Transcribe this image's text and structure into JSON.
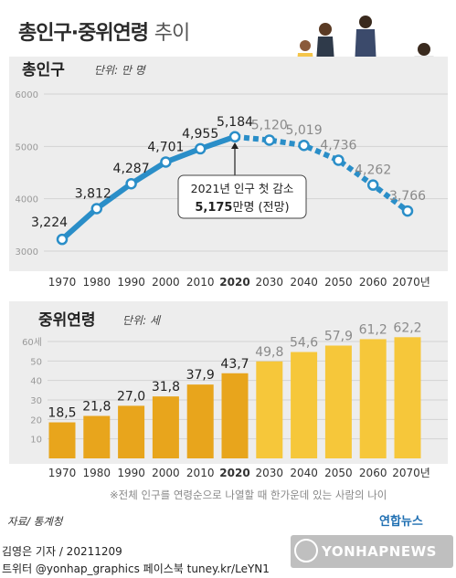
{
  "page": {
    "title_main": "총인구·중위연령",
    "title_suffix": "추이"
  },
  "colors": {
    "background": "#ffffff",
    "panel_bg": "#ededed",
    "line_blue": "#2a8ec8",
    "bar_dark": "#e8a51c",
    "bar_light": "#f6c73a"
  },
  "chart_data": [
    {
      "type": "line",
      "title": "총인구",
      "unit_label": "단위: 만 명",
      "x": [
        "1970",
        "1980",
        "1990",
        "2000",
        "2010",
        "2020",
        "2030",
        "2040",
        "2050",
        "2060",
        "2070년"
      ],
      "series": [
        {
          "values": [
            3224,
            3812,
            4287,
            4701,
            4955,
            5184,
            5120,
            5019,
            4736,
            4262,
            3766
          ]
        }
      ],
      "value_labels": [
        "3,224",
        "3,812",
        "4,287",
        "4,701",
        "4,955",
        "5,184",
        "5,120",
        "5,019",
        "4,736",
        "4,262",
        "3,766"
      ],
      "projection_from_index": 5,
      "ylim": [
        2800,
        6200
      ],
      "yticks": [
        3000,
        4000,
        5000,
        6000
      ],
      "grid": true,
      "annotation": {
        "line1": "2021년 인구 첫 감소",
        "value": "5,175",
        "unit": "만명",
        "suffix": "(전망)"
      }
    },
    {
      "type": "bar",
      "title": "중위연령",
      "unit_label": "단위: 세",
      "categories": [
        "1970",
        "1980",
        "1990",
        "2000",
        "2010",
        "2020",
        "2030",
        "2040",
        "2050",
        "2060",
        "2070년"
      ],
      "values": [
        18.5,
        21.8,
        27.0,
        31.8,
        37.9,
        43.7,
        49.8,
        54.6,
        57.9,
        61.2,
        62.2
      ],
      "value_labels": [
        "18,5",
        "21,8",
        "27,0",
        "31,8",
        "37,9",
        "43,7",
        "49,8",
        "54,6",
        "57,9",
        "61,2",
        "62,2"
      ],
      "projection_from_index": 6,
      "ylim": [
        0,
        60
      ],
      "yticks": [
        10,
        20,
        30,
        40,
        50,
        60
      ],
      "ytick_labels": [
        "10",
        "20",
        "30",
        "40",
        "50",
        "60세"
      ],
      "grid": true
    }
  ],
  "footer": {
    "note": "※전체 인구를 연령순으로 나열할 때 한가운데 있는 사람의 나이",
    "source": "자료/ 통계청",
    "yna_logo": "연합뉴스",
    "credit_line": "김영은 기자 / 20211209",
    "social_line": "트위터 @yonhap_graphics  페이스북 tuney.kr/LeYN1",
    "watermark": "YONHAPNEWS"
  }
}
